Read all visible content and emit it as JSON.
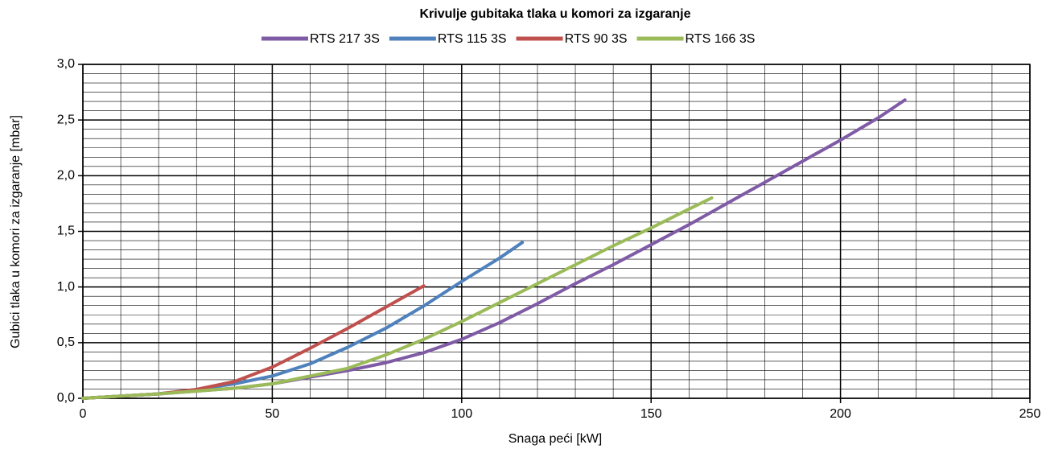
{
  "chart_data": {
    "type": "line",
    "title": "Krivulje gubitaka tlaka u komori za izgaranje",
    "x_label": "Snaga peći [kW]",
    "y_label": "Gubici tlaka u komori za izgaranje [mbar]",
    "xlim": [
      0,
      250
    ],
    "xticks": [
      0,
      50,
      100,
      150,
      200,
      250
    ],
    "ylim": [
      0,
      3
    ],
    "yticks": [
      {
        "value": 0,
        "label": "0,0"
      },
      {
        "value": 0.5,
        "label": "0,5"
      },
      {
        "value": 1,
        "label": "1,0"
      },
      {
        "value": 1.5,
        "label": "1,5"
      },
      {
        "value": 2,
        "label": "2,0"
      },
      {
        "value": 2.5,
        "label": "2,5"
      },
      {
        "value": 3,
        "label": "3,0"
      }
    ],
    "grid": true,
    "legend": "top",
    "series": [
      {
        "name": "RTS 217 3S",
        "color": "#7f5ba6",
        "x": [
          0,
          20,
          40,
          50,
          60,
          70,
          80,
          90,
          100,
          110,
          120,
          130,
          140,
          150,
          160,
          170,
          180,
          190,
          200,
          210,
          217
        ],
        "values": [
          0,
          0.04,
          0.09,
          0.13,
          0.19,
          0.25,
          0.32,
          0.41,
          0.53,
          0.68,
          0.85,
          1.03,
          1.2,
          1.38,
          1.56,
          1.75,
          1.94,
          2.13,
          2.32,
          2.52,
          2.68
        ]
      },
      {
        "name": "RTS 115 3S",
        "color": "#4f81bd",
        "x": [
          0,
          20,
          30,
          40,
          50,
          60,
          70,
          80,
          90,
          100,
          110,
          116
        ],
        "values": [
          0,
          0.04,
          0.08,
          0.13,
          0.2,
          0.31,
          0.46,
          0.63,
          0.83,
          1.05,
          1.26,
          1.4
        ]
      },
      {
        "name": "RTS 90 3S",
        "color": "#c0504d",
        "x": [
          0,
          20,
          30,
          40,
          50,
          60,
          70,
          80,
          90
        ],
        "values": [
          0,
          0.04,
          0.08,
          0.15,
          0.28,
          0.45,
          0.63,
          0.82,
          1.01
        ]
      },
      {
        "name": "RTS 166 3S",
        "color": "#9bbb59",
        "x": [
          0,
          20,
          40,
          50,
          60,
          70,
          80,
          90,
          100,
          110,
          120,
          130,
          140,
          150,
          160,
          166
        ],
        "values": [
          0,
          0.04,
          0.09,
          0.13,
          0.2,
          0.27,
          0.39,
          0.53,
          0.69,
          0.86,
          1.03,
          1.2,
          1.37,
          1.53,
          1.7,
          1.8
        ]
      }
    ]
  }
}
